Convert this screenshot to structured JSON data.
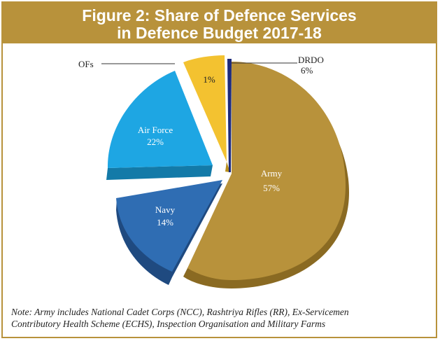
{
  "chart_data": {
    "type": "pie",
    "title": "Figure 2: Share of Defence Services",
    "subtitle": "in Defence Budget 2017-18",
    "slices": [
      {
        "name": "Army",
        "value": 57,
        "label": "57%",
        "color": "#b8923b"
      },
      {
        "name": "Navy",
        "value": 14,
        "label": "14%",
        "color": "#2f6db3"
      },
      {
        "name": "Air Force",
        "value": 22,
        "label": "22%",
        "color": "#1ea6e3"
      },
      {
        "name": "OFs",
        "value": 1,
        "label": "1%",
        "color": "#f3c230"
      },
      {
        "name": "DRDO",
        "value": 6,
        "label": "6%",
        "color": "#1d2a7a"
      }
    ]
  },
  "note": {
    "line1": "Note: Army includes National Cadet Corps (NCC), Rashtriya Rifles (RR), Ex-Servicemen",
    "line2": "Contributory Health Scheme (ECHS), Inspection Organisation and Military Farms"
  }
}
